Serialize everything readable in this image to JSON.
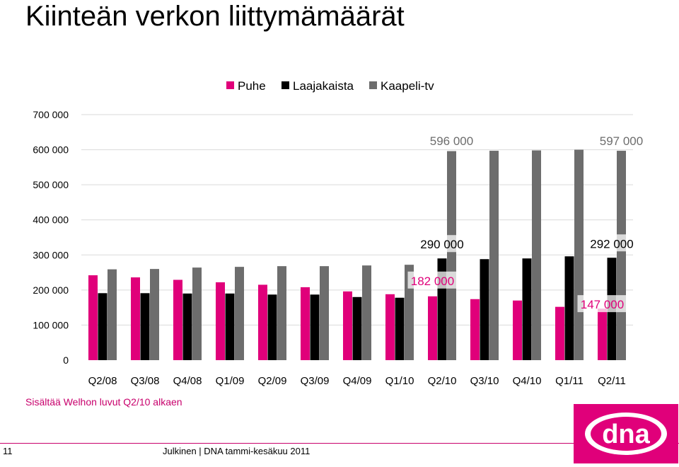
{
  "title": "Kiinteän verkon liittymämäärät",
  "note": "Sisältää Welhon luvut Q2/10 alkaen",
  "footer": {
    "page_number": "11",
    "text": "Julkinen | DNA tammi-kesäkuu 2011"
  },
  "logo": {
    "text": "dna",
    "color": "#e0007a"
  },
  "chart_data": {
    "type": "bar",
    "categories": [
      "Q2/08",
      "Q3/08",
      "Q4/08",
      "Q1/09",
      "Q2/09",
      "Q3/09",
      "Q4/09",
      "Q1/10",
      "Q2/10",
      "Q3/10",
      "Q4/10",
      "Q1/11",
      "Q2/11"
    ],
    "ylim": [
      0,
      700000
    ],
    "yticks": [
      0,
      100000,
      200000,
      300000,
      400000,
      500000,
      600000,
      700000
    ],
    "ytick_labels": [
      "0",
      "100 000",
      "200 000",
      "300 000",
      "400 000",
      "500 000",
      "600 000",
      "700 000"
    ],
    "grid": true,
    "legend_position": "top-right",
    "series": [
      {
        "name": "Puhe",
        "color": "#e0007a",
        "values": [
          242000,
          236000,
          229000,
          222000,
          215000,
          208000,
          196000,
          188000,
          182000,
          174000,
          170000,
          152000,
          147000
        ]
      },
      {
        "name": "Laajakaista",
        "color": "#000000",
        "values": [
          191000,
          191000,
          190000,
          190000,
          187000,
          187000,
          180000,
          178000,
          290000,
          288000,
          290000,
          296000,
          292000
        ]
      },
      {
        "name": "Kaapeli-tv",
        "color": "#6d6d6d",
        "values": [
          259000,
          260000,
          264000,
          266000,
          268000,
          268000,
          270000,
          272000,
          596000,
          597000,
          598000,
          600000,
          597000
        ]
      }
    ],
    "annotations": [
      {
        "text": "596 000",
        "category": "Q2/10",
        "series": "Kaapeli-tv",
        "color": "#6d6d6d"
      },
      {
        "text": "290 000",
        "category": "Q2/10",
        "series": "Laajakaista",
        "color": "#000000"
      },
      {
        "text": "182 000",
        "category": "Q2/10",
        "series": "Puhe",
        "color": "#e0007a"
      },
      {
        "text": "597 000",
        "category": "Q2/11",
        "series": "Kaapeli-tv",
        "color": "#6d6d6d"
      },
      {
        "text": "292 000",
        "category": "Q2/11",
        "series": "Laajakaista",
        "color": "#000000"
      },
      {
        "text": "147 000",
        "category": "Q2/11",
        "series": "Puhe",
        "color": "#e0007a"
      }
    ]
  }
}
